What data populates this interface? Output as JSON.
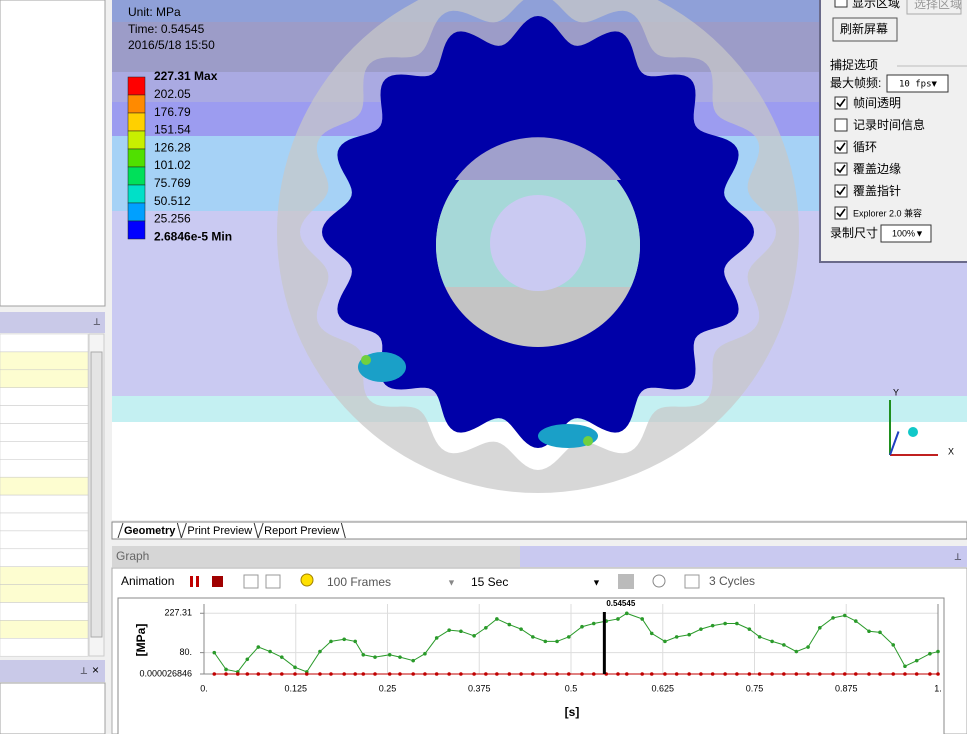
{
  "viewport": {
    "unit": "Unit: MPa",
    "time": "Time: 0.54545",
    "date": "2016/5/18 15:50",
    "legend": {
      "labels": [
        "227.31 Max",
        "202.05",
        "176.79",
        "151.54",
        "126.28",
        "101.02",
        "75.769",
        "50.512",
        "25.256",
        "2.6846e-5 Min"
      ],
      "colors": [
        "#ff0000",
        "#ff8a00",
        "#ffd000",
        "#c8f000",
        "#50e000",
        "#00e05a",
        "#00e0c8",
        "#00a0ff",
        "#0000ff"
      ]
    }
  },
  "recorder": {
    "show_area": "显示区域",
    "select_area": "选择区域",
    "refresh": "刷新屏幕",
    "group": "捕捉选项",
    "fps_label": "最大帧频:",
    "fps_value": "10 fps▼",
    "options": [
      {
        "label": "帧间透明",
        "checked": true
      },
      {
        "label": "记录时间信息",
        "checked": false
      },
      {
        "label": "循环",
        "checked": true
      },
      {
        "label": "覆盖边缘",
        "checked": true
      },
      {
        "label": "覆盖指针",
        "checked": true
      },
      {
        "label": "Explorer 2.0 兼容",
        "checked": true
      }
    ],
    "size_label": "录制尺寸",
    "size_value": "100%▼"
  },
  "tabs": [
    "Geometry",
    "Print Preview",
    "Report Preview"
  ],
  "graph_panel": {
    "title": "Graph",
    "animation": "Animation",
    "frames": "100 Frames",
    "duration": "15 Sec",
    "cycles": "3 Cycles"
  },
  "chart_data": {
    "type": "line",
    "y_label": "[MPa]",
    "x_label": "[s]",
    "cursor": 0.54545,
    "x": [
      0.014,
      0.03,
      0.046,
      0.059,
      0.074,
      0.09,
      0.106,
      0.124,
      0.14,
      0.158,
      0.173,
      0.191,
      0.206,
      0.217,
      0.233,
      0.253,
      0.267,
      0.285,
      0.301,
      0.317,
      0.334,
      0.35,
      0.368,
      0.384,
      0.399,
      0.416,
      0.432,
      0.448,
      0.465,
      0.481,
      0.497,
      0.515,
      0.531,
      0.548,
      0.564,
      0.576,
      0.597,
      0.61,
      0.628,
      0.644,
      0.661,
      0.677,
      0.693,
      0.71,
      0.726,
      0.743,
      0.757,
      0.774,
      0.79,
      0.807,
      0.823,
      0.839,
      0.857,
      0.873,
      0.888,
      0.906,
      0.921,
      0.939,
      0.955,
      0.971,
      0.989,
      1.0
    ],
    "series": [
      {
        "color": "#2a9a2a",
        "values": [
          80,
          17,
          8,
          55,
          101,
          84,
          63,
          25,
          8,
          84,
          122,
          130,
          122,
          72,
          63,
          72,
          63,
          50,
          76,
          135,
          164,
          160,
          143,
          173,
          206,
          185,
          168,
          139,
          122,
          122,
          139,
          177,
          189,
          198,
          206,
          227,
          206,
          152,
          122,
          139,
          147,
          168,
          181,
          189,
          189,
          168,
          139,
          122,
          109,
          84,
          101,
          173,
          210,
          219,
          198,
          160,
          156,
          109,
          29,
          50,
          76,
          84
        ]
      },
      {
        "color": "#c00000",
        "values": [
          2.6846e-05,
          2.6846e-05,
          2.6846e-05,
          2.6846e-05,
          2.6846e-05,
          2.6846e-05,
          2.6846e-05,
          2.6846e-05,
          2.6846e-05,
          2.6846e-05,
          2.6846e-05,
          2.6846e-05,
          2.6846e-05,
          2.6846e-05,
          2.6846e-05,
          2.6846e-05,
          2.6846e-05,
          2.6846e-05,
          2.6846e-05,
          2.6846e-05,
          2.6846e-05,
          2.6846e-05,
          2.6846e-05,
          2.6846e-05,
          2.6846e-05,
          2.6846e-05,
          2.6846e-05,
          2.6846e-05,
          2.6846e-05,
          2.6846e-05,
          2.6846e-05,
          2.6846e-05,
          2.6846e-05,
          2.6846e-05,
          2.6846e-05,
          2.6846e-05,
          2.6846e-05,
          2.6846e-05,
          2.6846e-05,
          2.6846e-05,
          2.6846e-05,
          2.6846e-05,
          2.6846e-05,
          2.6846e-05,
          2.6846e-05,
          2.6846e-05,
          2.6846e-05,
          2.6846e-05,
          2.6846e-05,
          2.6846e-05,
          2.6846e-05,
          2.6846e-05,
          2.6846e-05,
          2.6846e-05,
          2.6846e-05,
          2.6846e-05,
          2.6846e-05,
          2.6846e-05,
          2.6846e-05,
          2.6846e-05,
          2.6846e-05,
          2.6846e-05
        ]
      }
    ],
    "xlim": [
      0,
      1
    ],
    "ylim": [
      2.6846e-05,
      262
    ],
    "xticks": [
      {
        "value": 0,
        "label": "0."
      },
      0.125,
      0.25,
      0.375,
      0.5,
      0.625,
      0.75,
      0.875,
      {
        "value": 1,
        "label": "1."
      }
    ],
    "yticks": [
      227.31,
      {
        "value": 80,
        "label": "80."
      },
      2.6846e-05
    ],
    "grid": true
  }
}
